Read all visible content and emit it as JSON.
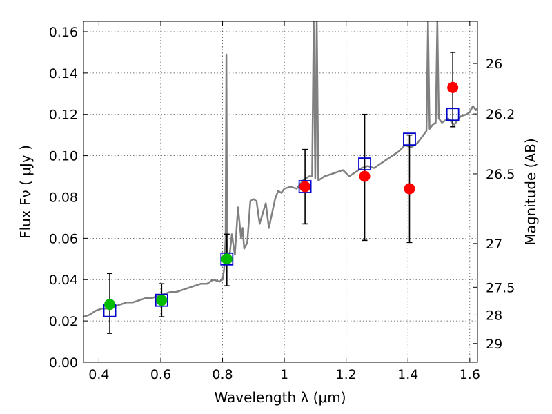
{
  "chart_data": {
    "type": "scatter",
    "xlabel": "Wavelength  λ (μm)",
    "ylabel": "Flux  Fν  ( μJy )",
    "y2label": "Magnitude (AB)",
    "xlim": [
      0.35,
      1.625
    ],
    "ylim": [
      0,
      0.165
    ],
    "grid": true,
    "x_ticks": [
      0.4,
      0.6,
      0.8,
      1.0,
      1.2,
      1.4,
      1.6
    ],
    "x_tick_labels": [
      "0.4",
      "0.6",
      "0.8",
      "1",
      "1.2",
      "1.4",
      "1.6"
    ],
    "y_ticks": [
      0.0,
      0.02,
      0.04,
      0.06,
      0.08,
      0.1,
      0.12,
      0.14,
      0.16
    ],
    "y_tick_labels": [
      "0.00",
      "0.02",
      "0.04",
      "0.06",
      "0.08",
      "0.10",
      "0.12",
      "0.14",
      "0.16"
    ],
    "mag_ticks": [
      {
        "flux": 0.1446,
        "label": "26"
      },
      {
        "flux": 0.1202,
        "label": "26.2"
      },
      {
        "flux": 0.0912,
        "label": "26.5"
      },
      {
        "flux": 0.0575,
        "label": "27"
      },
      {
        "flux": 0.0363,
        "label": "27.5"
      },
      {
        "flux": 0.0229,
        "label": "28"
      },
      {
        "flux": 0.0091,
        "label": "29"
      }
    ],
    "colors": {
      "spectrum": "#808080",
      "model": "#0000cc",
      "optical": "#00bb00",
      "nir": "#ff0000",
      "errorbar": "#000000"
    },
    "series": [
      {
        "kind": "spectrum",
        "x": [
          0.35,
          0.37,
          0.39,
          0.41,
          0.43,
          0.45,
          0.47,
          0.49,
          0.51,
          0.53,
          0.55,
          0.57,
          0.59,
          0.61,
          0.63,
          0.65,
          0.67,
          0.69,
          0.71,
          0.73,
          0.75,
          0.77,
          0.79,
          0.8,
          0.805,
          0.81,
          0.8125,
          0.815,
          0.82,
          0.83,
          0.84,
          0.85,
          0.86,
          0.865,
          0.87,
          0.88,
          0.89,
          0.9,
          0.91,
          0.92,
          0.93,
          0.94,
          0.95,
          0.96,
          0.97,
          0.98,
          0.99,
          1.0,
          1.02,
          1.04,
          1.06,
          1.08,
          1.09,
          1.095,
          1.1,
          1.105,
          1.11,
          1.13,
          1.15,
          1.17,
          1.19,
          1.21,
          1.23,
          1.25,
          1.27,
          1.29,
          1.31,
          1.33,
          1.35,
          1.37,
          1.39,
          1.41,
          1.43,
          1.45,
          1.46,
          1.465,
          1.47,
          1.48,
          1.49,
          1.495,
          1.5,
          1.51,
          1.53,
          1.55,
          1.57,
          1.59,
          1.6,
          1.61,
          1.62,
          1.625
        ],
        "y": [
          0.022,
          0.023,
          0.025,
          0.026,
          0.026,
          0.027,
          0.028,
          0.029,
          0.029,
          0.03,
          0.031,
          0.031,
          0.032,
          0.033,
          0.034,
          0.034,
          0.035,
          0.036,
          0.037,
          0.038,
          0.038,
          0.04,
          0.039,
          0.04,
          0.045,
          0.06,
          0.149,
          0.052,
          0.048,
          0.062,
          0.052,
          0.075,
          0.06,
          0.065,
          0.055,
          0.058,
          0.078,
          0.079,
          0.078,
          0.067,
          0.072,
          0.077,
          0.065,
          0.072,
          0.079,
          0.083,
          0.082,
          0.084,
          0.085,
          0.084,
          0.088,
          0.09,
          0.09,
          0.165,
          0.089,
          0.165,
          0.088,
          0.09,
          0.091,
          0.092,
          0.093,
          0.09,
          0.092,
          0.094,
          0.095,
          0.094,
          0.096,
          0.098,
          0.1,
          0.102,
          0.105,
          0.104,
          0.106,
          0.11,
          0.112,
          0.165,
          0.113,
          0.115,
          0.116,
          0.165,
          0.118,
          0.116,
          0.118,
          0.115,
          0.119,
          0.12,
          0.121,
          0.124,
          0.122,
          0.123
        ]
      },
      {
        "kind": "model",
        "x": [
          0.435,
          0.603,
          0.814,
          1.067,
          1.26,
          1.405,
          1.545
        ],
        "y": [
          0.025,
          0.03,
          0.05,
          0.085,
          0.096,
          0.108,
          0.12
        ]
      },
      {
        "kind": "observed",
        "x": [
          0.435,
          0.603,
          0.814,
          1.067,
          1.26,
          1.405,
          1.545
        ],
        "y": [
          0.028,
          0.03,
          0.05,
          0.085,
          0.09,
          0.084,
          0.133
        ],
        "y_low": [
          0.014,
          0.022,
          0.037,
          0.067,
          0.059,
          0.058,
          0.114
        ],
        "y_high": [
          0.043,
          0.038,
          0.062,
          0.103,
          0.12,
          0.11,
          0.15
        ],
        "marker_group": [
          "optical",
          "optical",
          "optical",
          "nir",
          "nir",
          "nir",
          "nir"
        ]
      }
    ]
  }
}
